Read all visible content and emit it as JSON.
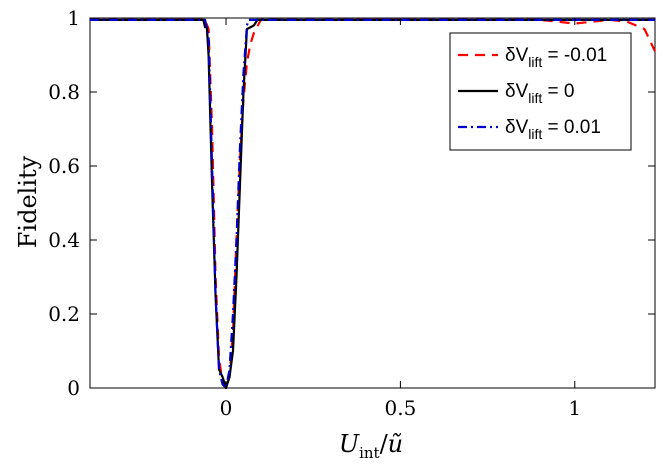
{
  "chart_data": {
    "type": "line",
    "xlabel": "U_int/ũ",
    "ylabel": "Fidelity",
    "xlim": [
      -0.39,
      1.23
    ],
    "ylim": [
      0,
      1
    ],
    "xticks": [
      0,
      0.5,
      1
    ],
    "xtick_labels": [
      "0",
      "0.5",
      "1"
    ],
    "yticks": [
      0,
      0.2,
      0.4,
      0.6,
      0.8,
      1
    ],
    "ytick_labels": [
      "0",
      "0.2",
      "0.4",
      "0.6",
      "0.8",
      "1"
    ],
    "grid": false,
    "legend_position": "top-right",
    "series": [
      {
        "name": "δV_lift = -0.01",
        "legend_main": "δV",
        "legend_sub": "lift",
        "legend_value": " = -0.01",
        "color": "#ff0000",
        "dash": "10,7",
        "x": [
          -0.39,
          -0.06,
          -0.05,
          -0.04,
          -0.03,
          -0.02,
          -0.01,
          0.0,
          0.01,
          0.02,
          0.03,
          0.04,
          0.05,
          0.06,
          0.07,
          0.08,
          0.1,
          0.2,
          0.5,
          0.8,
          0.9,
          0.95,
          1.0,
          1.05,
          1.1,
          1.15,
          1.2,
          1.23
        ],
        "y": [
          0.995,
          0.995,
          0.97,
          0.7,
          0.3,
          0.08,
          0.015,
          0.0,
          0.03,
          0.15,
          0.4,
          0.62,
          0.78,
          0.88,
          0.93,
          0.96,
          0.995,
          0.995,
          0.995,
          0.995,
          0.995,
          0.99,
          0.985,
          0.99,
          0.995,
          0.99,
          0.97,
          0.91
        ]
      },
      {
        "name": "δV_lift = 0",
        "legend_main": "δV",
        "legend_sub": "lift",
        "legend_value": " = 0",
        "color": "#000000",
        "dash": "",
        "x": [
          -0.39,
          -0.065,
          -0.06,
          -0.055,
          -0.05,
          -0.04,
          -0.03,
          -0.02,
          -0.01,
          0.0,
          0.01,
          0.02,
          0.03,
          0.04,
          0.05,
          0.06,
          0.07,
          0.08,
          0.09,
          0.1,
          1.23
        ],
        "y": [
          0.995,
          0.995,
          0.975,
          0.975,
          0.9,
          0.55,
          0.25,
          0.05,
          0.03,
          0.0,
          0.03,
          0.1,
          0.3,
          0.55,
          0.8,
          0.97,
          0.975,
          0.98,
          0.995,
          0.995,
          0.995
        ]
      },
      {
        "name": "δV_lift = 0.01",
        "legend_main": "δV",
        "legend_sub": "lift",
        "legend_value": " = 0.01",
        "color": "#0000cc",
        "dash": "9,4,2,4",
        "x": [
          -0.39,
          -0.06,
          -0.05,
          -0.04,
          -0.03,
          -0.02,
          -0.01,
          0.0,
          0.01,
          0.02,
          0.03,
          0.04,
          0.05,
          0.06,
          0.065,
          1.23
        ],
        "y": [
          0.995,
          0.995,
          0.95,
          0.6,
          0.25,
          0.05,
          0.01,
          0.0,
          0.05,
          0.2,
          0.4,
          0.65,
          0.85,
          0.98,
          0.995,
          0.995
        ]
      }
    ]
  }
}
